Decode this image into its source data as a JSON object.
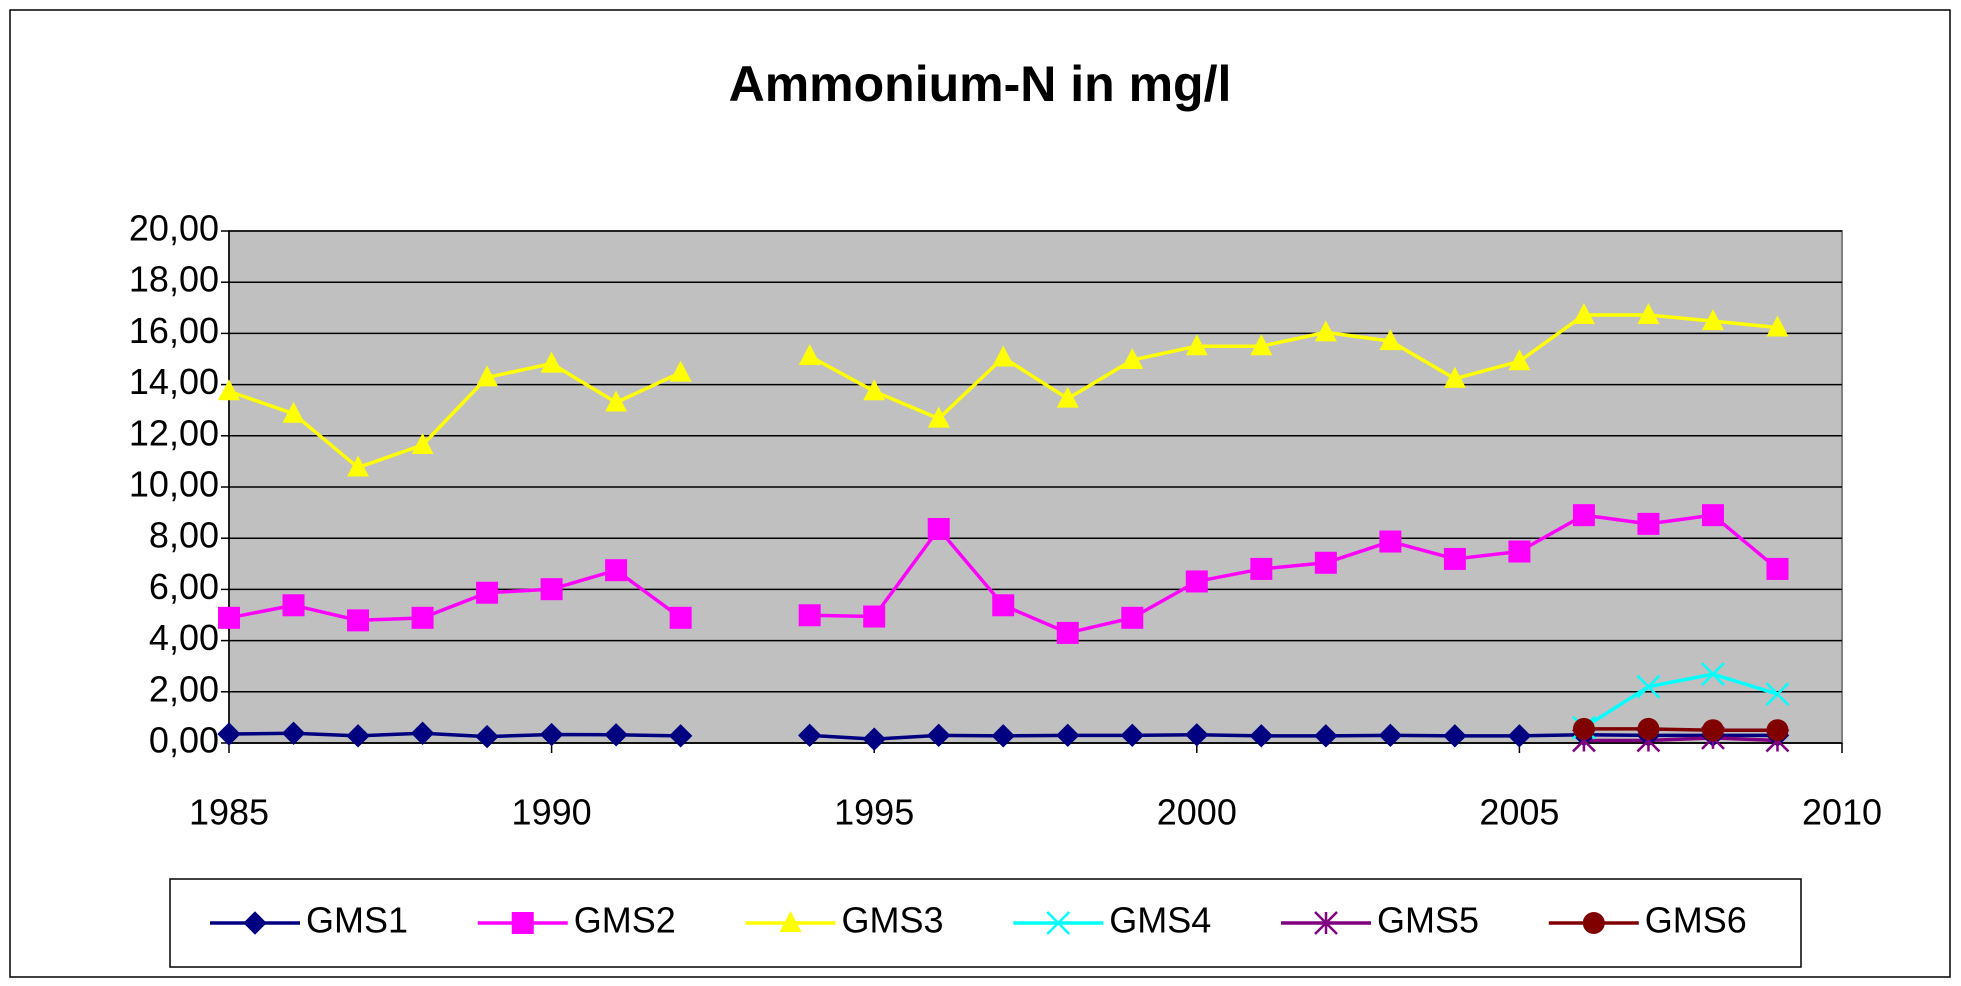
{
  "chart_data": {
    "type": "line",
    "title": "Ammonium-N in mg/l",
    "x": [
      1985,
      1986,
      1987,
      1988,
      1989,
      1990,
      1991,
      1992,
      1993,
      1994,
      1995,
      1996,
      1997,
      1998,
      1999,
      2000,
      2001,
      2002,
      2003,
      2004,
      2005,
      2006,
      2007,
      2008,
      2009
    ],
    "series": [
      {
        "name": "GMS1",
        "color": "#000080",
        "marker": "diamond",
        "values": [
          0.35,
          0.38,
          0.28,
          0.38,
          0.25,
          0.33,
          0.32,
          0.28,
          null,
          0.3,
          0.15,
          0.3,
          0.28,
          0.3,
          0.3,
          0.32,
          0.28,
          0.28,
          0.3,
          0.28,
          0.28,
          0.32,
          0.3,
          0.3,
          0.3
        ]
      },
      {
        "name": "GMS2",
        "color": "#ff00ff",
        "marker": "square",
        "values": [
          4.89,
          5.38,
          4.79,
          4.89,
          5.87,
          6.01,
          6.75,
          4.89,
          null,
          4.99,
          4.94,
          8.36,
          5.38,
          4.3,
          4.89,
          6.31,
          6.8,
          7.04,
          7.87,
          7.19,
          7.48,
          8.9,
          8.56,
          8.9,
          6.8
        ]
      },
      {
        "name": "GMS3",
        "color": "#ffff00",
        "marker": "triangle",
        "values": [
          13.74,
          12.86,
          10.76,
          11.64,
          14.28,
          14.82,
          13.3,
          14.47,
          null,
          15.11,
          13.74,
          12.67,
          15.06,
          13.45,
          14.96,
          15.5,
          15.5,
          16.04,
          15.7,
          14.23,
          14.91,
          16.72,
          16.72,
          16.48,
          16.23
        ]
      },
      {
        "name": "GMS4",
        "color": "#00ffff",
        "marker": "x",
        "values": [
          null,
          null,
          null,
          null,
          null,
          null,
          null,
          null,
          null,
          null,
          null,
          null,
          null,
          null,
          null,
          null,
          null,
          null,
          null,
          null,
          null,
          0.6,
          2.2,
          2.69,
          1.91
        ]
      },
      {
        "name": "GMS5",
        "color": "#800080",
        "marker": "star",
        "values": [
          null,
          null,
          null,
          null,
          null,
          null,
          null,
          null,
          null,
          null,
          null,
          null,
          null,
          null,
          null,
          null,
          null,
          null,
          null,
          null,
          null,
          0.1,
          0.1,
          0.2,
          0.1
        ]
      },
      {
        "name": "GMS6",
        "color": "#800000",
        "marker": "circle",
        "values": [
          null,
          null,
          null,
          null,
          null,
          null,
          null,
          null,
          null,
          null,
          null,
          null,
          null,
          null,
          null,
          null,
          null,
          null,
          null,
          null,
          null,
          0.55,
          0.55,
          0.5,
          0.5
        ]
      }
    ],
    "xlim": [
      1985,
      2010
    ],
    "xticks": [
      1985,
      1990,
      1995,
      2000,
      2005,
      2010
    ],
    "ylim": [
      0,
      20
    ],
    "yticks": [
      {
        "value": 0,
        "label": "0,00"
      },
      {
        "value": 2,
        "label": "2,00"
      },
      {
        "value": 4,
        "label": "4,00"
      },
      {
        "value": 6,
        "label": "6,00"
      },
      {
        "value": 8,
        "label": "8,00"
      },
      {
        "value": 10,
        "label": "10,00"
      },
      {
        "value": 12,
        "label": "12,00"
      },
      {
        "value": 14,
        "label": "14,00"
      },
      {
        "value": 16,
        "label": "16,00"
      },
      {
        "value": 18,
        "label": "18,00"
      },
      {
        "value": 20,
        "label": "20,00"
      }
    ],
    "grid": true,
    "plot_background": "#c0c0c0",
    "legend": "bottom"
  }
}
